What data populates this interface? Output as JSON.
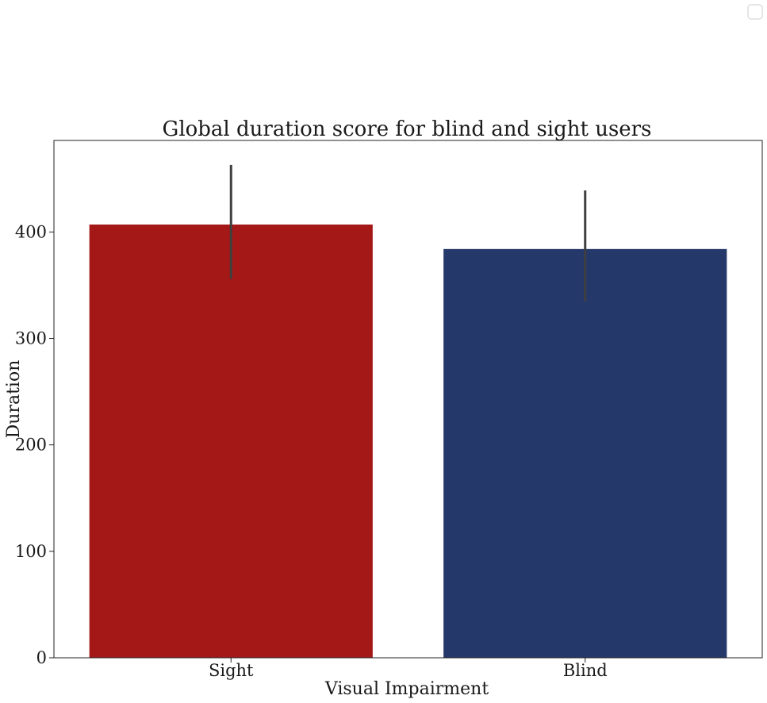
{
  "chart_data": {
    "type": "bar",
    "title": "Global duration score for blind and sight users",
    "xlabel": "Visual Impairment",
    "ylabel": "Duration",
    "categories": [
      "Sight",
      "Blind"
    ],
    "values": [
      407,
      384
    ],
    "error_bars": [
      [
        356,
        463
      ],
      [
        335,
        439
      ]
    ],
    "ylim": [
      0,
      486
    ],
    "yticks": [
      0,
      100,
      200,
      300,
      400
    ],
    "colors": [
      "#a51818",
      "#25386a"
    ],
    "errorbar_color": "#3f3f3f",
    "grid": false,
    "legend": "top-right (empty)"
  }
}
